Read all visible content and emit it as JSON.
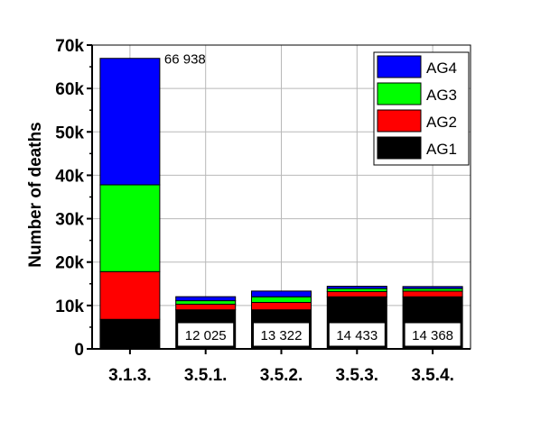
{
  "chart_data": {
    "type": "bar",
    "stacked": true,
    "categories": [
      "3.1.3.",
      "3.5.1.",
      "3.5.2.",
      "3.5.3.",
      "3.5.4."
    ],
    "series": [
      {
        "name": "AG1",
        "color": "#000000",
        "values": [
          6800,
          9000,
          9000,
          12000,
          12000
        ]
      },
      {
        "name": "AG2",
        "color": "#ff0000",
        "values": [
          11000,
          1300,
          1700,
          1200,
          1300
        ]
      },
      {
        "name": "AG3",
        "color": "#00ff00",
        "values": [
          20000,
          800,
          1300,
          700,
          600
        ]
      },
      {
        "name": "AG4",
        "color": "#0000ff",
        "values": [
          29138,
          925,
          1322,
          533,
          468
        ]
      }
    ],
    "totals": [
      66938,
      12025,
      13322,
      14433,
      14368
    ],
    "total_labels": [
      "66 938",
      "12 025",
      "13 322",
      "14 433",
      "14 368"
    ],
    "ylabel": "Number of deaths",
    "xlabel": "",
    "ylim": [
      0,
      70000
    ],
    "yticks": [
      0,
      10000,
      20000,
      30000,
      40000,
      50000,
      60000,
      70000
    ],
    "ytick_labels": [
      "0",
      "10k",
      "20k",
      "30k",
      "40k",
      "50k",
      "60k",
      "70k"
    ],
    "legend_order": [
      "AG4",
      "AG3",
      "AG2",
      "AG1"
    ],
    "legend_position": "top-right",
    "grid": true
  }
}
